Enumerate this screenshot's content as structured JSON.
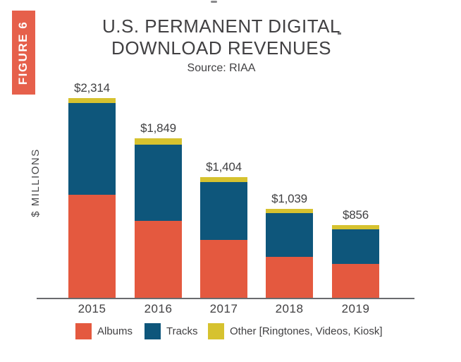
{
  "figure_badge": {
    "label": "FIGURE 6",
    "color": "#E6604B"
  },
  "title": {
    "line1": "U.S. PERMANENT DIGITAL",
    "line2": "DOWNLOAD REVENUES",
    "source": "Source: RIAA"
  },
  "y_axis_label": "$ MILLIONS",
  "chart_data": {
    "type": "bar",
    "stacked": true,
    "title": "U.S. PERMANENT DIGITAL DOWNLOAD REVENUES",
    "subtitle": "Source: RIAA",
    "xlabel": "",
    "ylabel": "$ MILLIONS",
    "grid": false,
    "legend_position": "bottom",
    "ylim": [
      0,
      2400
    ],
    "categories": [
      "2015",
      "2016",
      "2017",
      "2018",
      "2019"
    ],
    "series": [
      {
        "name": "Albums",
        "color": "#E4593F",
        "values": [
          1202,
          905,
          683,
          487,
          404
        ]
      },
      {
        "name": "Tracks",
        "color": "#0E567B",
        "values": [
          1055,
          869,
          662,
          503,
          403
        ]
      },
      {
        "name": "Other [Ringtones, Videos, Kiosk]",
        "color": "#D6C22F",
        "values": [
          57,
          75,
          59,
          49,
          49
        ]
      }
    ],
    "totals": [
      2314,
      1849,
      1404,
      1039,
      856
    ],
    "total_labels": [
      "$2,314",
      "$1,849",
      "$1,404",
      "$1,039",
      "$856"
    ]
  }
}
